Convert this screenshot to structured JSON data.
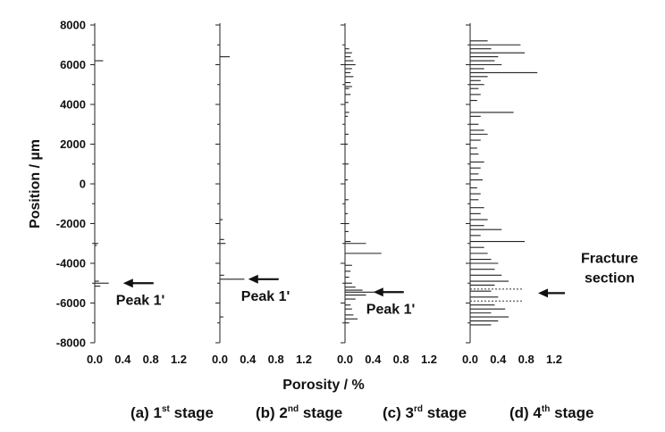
{
  "chart_data": {
    "type": "bar",
    "orientation": "horizontal",
    "ylabel": "Position / µm",
    "xlabel": "Porosity / %",
    "ylim": [
      -8000,
      8000
    ],
    "xlim": [
      0,
      1.2
    ],
    "y_ticks": [
      "8000",
      "6000",
      "4000",
      "2000",
      "0",
      "-2000",
      "-4000",
      "-6000",
      "-8000"
    ],
    "x_ticks": [
      "0.0",
      "0.4",
      "0.8",
      "1.2"
    ],
    "grid": false,
    "panels": [
      {
        "caption": {
          "prefix": "(a) 1",
          "sup": "st",
          "suffix": " stage"
        },
        "annotations": [
          {
            "text": "Peak 1'",
            "y": -5000
          }
        ],
        "bars": [
          {
            "y": 6200,
            "value": 0.12
          },
          {
            "y": -3000,
            "value": 0.05
          },
          {
            "y": -3100,
            "value": 0.03
          },
          {
            "y": -4900,
            "value": 0.06
          },
          {
            "y": -5000,
            "value": 0.2
          },
          {
            "y": -5150,
            "value": 0.08
          }
        ]
      },
      {
        "caption": {
          "prefix": "(b) 2",
          "sup": "nd",
          "suffix": " stage"
        },
        "annotations": [
          {
            "text": "Peak 1'",
            "y": -4800
          }
        ],
        "bars": [
          {
            "y": 6400,
            "value": 0.14
          },
          {
            "y": -1800,
            "value": 0.04
          },
          {
            "y": -2800,
            "value": 0.06
          },
          {
            "y": -3000,
            "value": 0.08
          },
          {
            "y": -4600,
            "value": 0.06
          },
          {
            "y": -4800,
            "value": 0.35
          },
          {
            "y": -6700,
            "value": 0.05
          }
        ]
      },
      {
        "caption": {
          "prefix": "(c) 3",
          "sup": "rd",
          "suffix": " stage"
        },
        "annotations": [
          {
            "text": "Peak 1'",
            "y": -5450
          }
        ],
        "bars": [
          {
            "y": 6800,
            "value": 0.06
          },
          {
            "y": 6600,
            "value": 0.1
          },
          {
            "y": 6400,
            "value": 0.08
          },
          {
            "y": 6200,
            "value": 0.12
          },
          {
            "y": 6000,
            "value": 0.15
          },
          {
            "y": 5800,
            "value": 0.1
          },
          {
            "y": 5600,
            "value": 0.08
          },
          {
            "y": 5400,
            "value": 0.12
          },
          {
            "y": 5100,
            "value": 0.08
          },
          {
            "y": 4900,
            "value": 0.1
          },
          {
            "y": 4800,
            "value": 0.06
          },
          {
            "y": 4500,
            "value": 0.08
          },
          {
            "y": 4100,
            "value": 0.05
          },
          {
            "y": 3600,
            "value": 0.06
          },
          {
            "y": 3400,
            "value": 0.04
          },
          {
            "y": 2500,
            "value": 0.05
          },
          {
            "y": 2000,
            "value": 0.04
          },
          {
            "y": 1000,
            "value": 0.05
          },
          {
            "y": 200,
            "value": 0.04
          },
          {
            "y": -800,
            "value": 0.05
          },
          {
            "y": -1500,
            "value": 0.04
          },
          {
            "y": -2000,
            "value": 0.06
          },
          {
            "y": -2400,
            "value": 0.05
          },
          {
            "y": -2900,
            "value": 0.08
          },
          {
            "y": -3000,
            "value": 0.3
          },
          {
            "y": -3500,
            "value": 0.52
          },
          {
            "y": -4100,
            "value": 0.1
          },
          {
            "y": -4400,
            "value": 0.08
          },
          {
            "y": -4700,
            "value": 0.06
          },
          {
            "y": -5000,
            "value": 0.1
          },
          {
            "y": -5200,
            "value": 0.15
          },
          {
            "y": -5350,
            "value": 0.25
          },
          {
            "y": -5450,
            "value": 0.72
          },
          {
            "y": -5600,
            "value": 0.3
          },
          {
            "y": -5800,
            "value": 0.15
          },
          {
            "y": -6100,
            "value": 0.08
          },
          {
            "y": -6300,
            "value": 0.1
          },
          {
            "y": -6600,
            "value": 0.12
          },
          {
            "y": -6800,
            "value": 0.18
          },
          {
            "y": -7000,
            "value": 0.06
          }
        ]
      },
      {
        "caption": {
          "prefix": "(d) 4",
          "sup": "th",
          "suffix": " stage"
        },
        "annotations": [
          {
            "text": "Fracture section",
            "lines": [
              "Fracture",
              "section"
            ],
            "y": -5500
          }
        ],
        "dashed_lines": [
          -5300,
          -5900
        ],
        "bars": [
          {
            "y": 7200,
            "value": 0.25
          },
          {
            "y": 7000,
            "value": 0.72
          },
          {
            "y": 6800,
            "value": 0.3
          },
          {
            "y": 6600,
            "value": 0.78
          },
          {
            "y": 6400,
            "value": 0.4
          },
          {
            "y": 6200,
            "value": 0.35
          },
          {
            "y": 6000,
            "value": 0.45
          },
          {
            "y": 5800,
            "value": 0.2
          },
          {
            "y": 5600,
            "value": 0.96
          },
          {
            "y": 5400,
            "value": 0.25
          },
          {
            "y": 5200,
            "value": 0.15
          },
          {
            "y": 5000,
            "value": 0.2
          },
          {
            "y": 4800,
            "value": 0.12
          },
          {
            "y": 4500,
            "value": 0.15
          },
          {
            "y": 4200,
            "value": 0.1
          },
          {
            "y": 3600,
            "value": 0.62
          },
          {
            "y": 3400,
            "value": 0.15
          },
          {
            "y": 3000,
            "value": 0.12
          },
          {
            "y": 2700,
            "value": 0.2
          },
          {
            "y": 2500,
            "value": 0.25
          },
          {
            "y": 2200,
            "value": 0.15
          },
          {
            "y": 1800,
            "value": 0.1
          },
          {
            "y": 1500,
            "value": 0.12
          },
          {
            "y": 1100,
            "value": 0.2
          },
          {
            "y": 800,
            "value": 0.15
          },
          {
            "y": 500,
            "value": 0.12
          },
          {
            "y": 200,
            "value": 0.18
          },
          {
            "y": -200,
            "value": 0.1
          },
          {
            "y": -500,
            "value": 0.15
          },
          {
            "y": -800,
            "value": 0.12
          },
          {
            "y": -1200,
            "value": 0.2
          },
          {
            "y": -1500,
            "value": 0.15
          },
          {
            "y": -1800,
            "value": 0.25
          },
          {
            "y": -2100,
            "value": 0.2
          },
          {
            "y": -2300,
            "value": 0.45
          },
          {
            "y": -2600,
            "value": 0.15
          },
          {
            "y": -2900,
            "value": 0.78
          },
          {
            "y": -3200,
            "value": 0.2
          },
          {
            "y": -3500,
            "value": 0.25
          },
          {
            "y": -3800,
            "value": 0.3
          },
          {
            "y": -4000,
            "value": 0.4
          },
          {
            "y": -4300,
            "value": 0.35
          },
          {
            "y": -4600,
            "value": 0.45
          },
          {
            "y": -4900,
            "value": 0.55
          },
          {
            "y": -5100,
            "value": 0.35
          },
          {
            "y": -5400,
            "value": 0.3
          },
          {
            "y": -5700,
            "value": 0.4
          },
          {
            "y": -6100,
            "value": 0.35
          },
          {
            "y": -6300,
            "value": 0.5
          },
          {
            "y": -6500,
            "value": 0.3
          },
          {
            "y": -6700,
            "value": 0.55
          },
          {
            "y": -6900,
            "value": 0.4
          },
          {
            "y": -7100,
            "value": 0.3
          }
        ]
      }
    ]
  }
}
